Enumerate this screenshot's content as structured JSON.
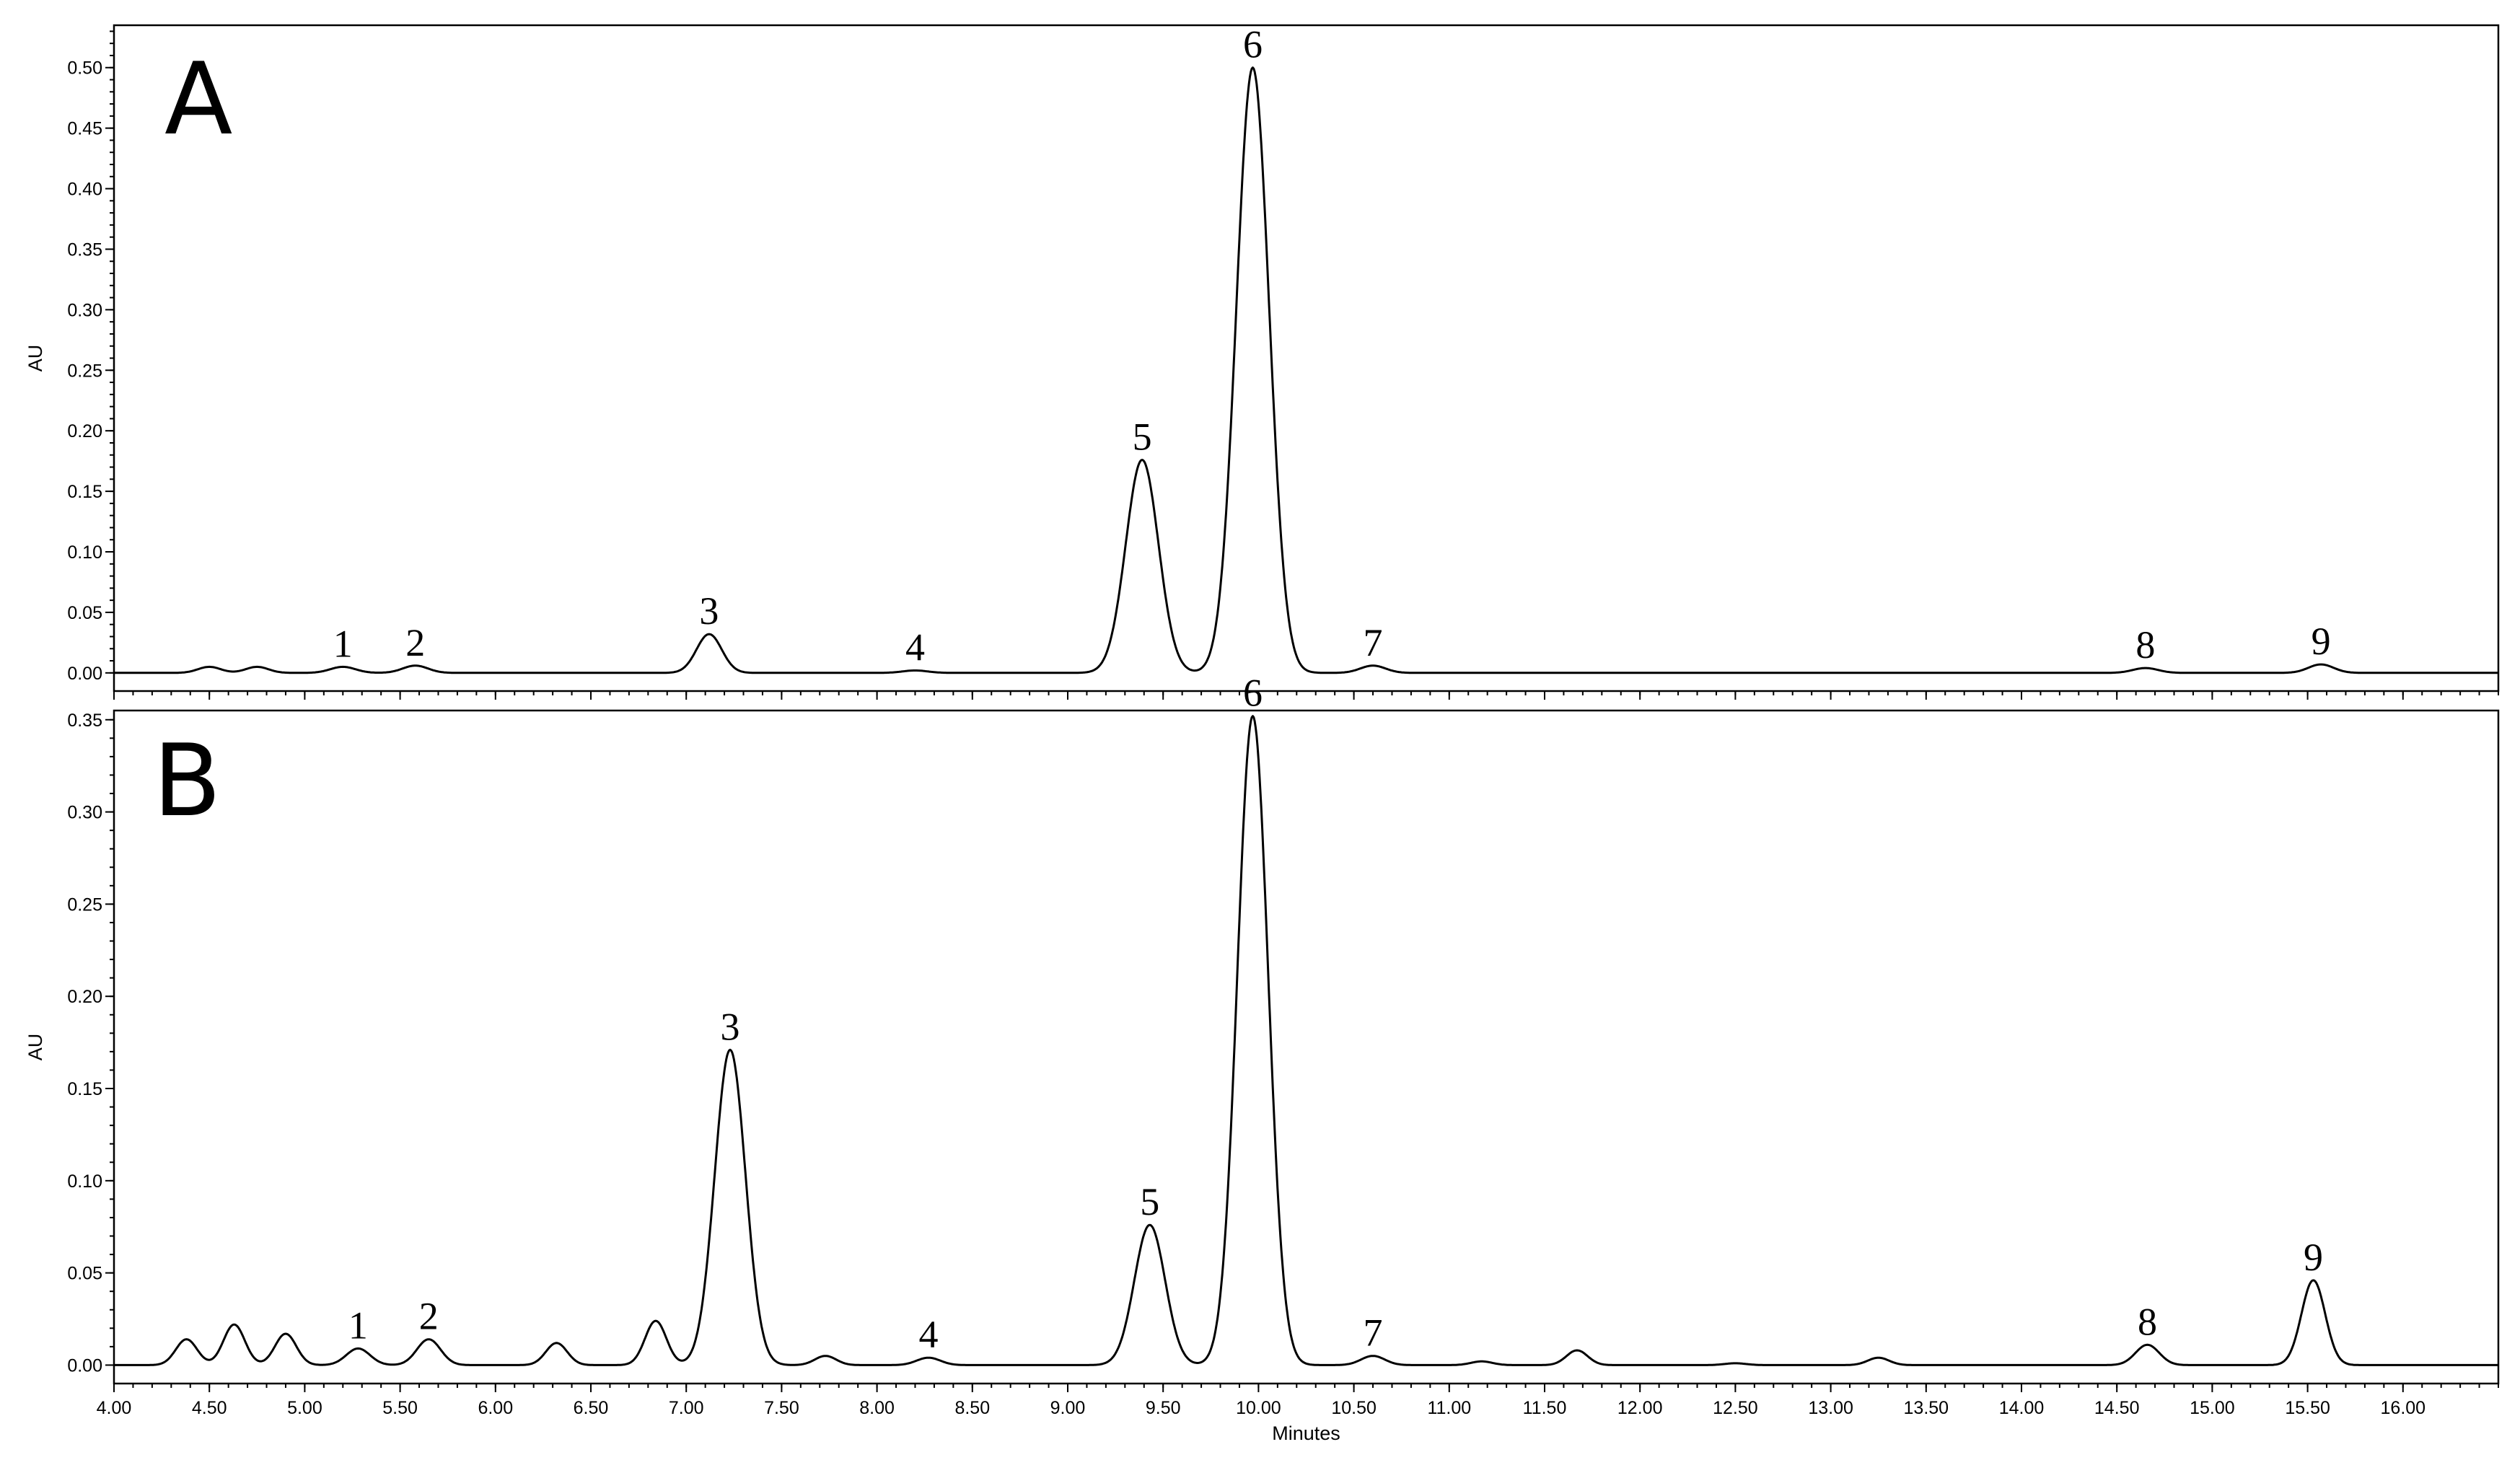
{
  "chart_data": [
    {
      "type": "line",
      "panel_label": "A",
      "ylabel": "AU",
      "xlabel": "",
      "xlim": [
        4.0,
        16.5
      ],
      "ylim": [
        -0.015,
        0.535
      ],
      "x_ticks": [
        "4.00",
        "4.50",
        "5.00",
        "5.50",
        "6.00",
        "6.50",
        "7.00",
        "7.50",
        "8.00",
        "8.50",
        "9.00",
        "9.50",
        "10.00",
        "10.50",
        "11.00",
        "11.50",
        "12.00",
        "12.50",
        "13.00",
        "13.50",
        "14.00",
        "14.50",
        "15.00",
        "15.50",
        "16.00"
      ],
      "y_ticks": [
        "0.00",
        "0.05",
        "0.10",
        "0.15",
        "0.20",
        "0.25",
        "0.30",
        "0.35",
        "0.40",
        "0.45",
        "0.50"
      ],
      "peaks": [
        {
          "label": "1",
          "time": 5.2,
          "height": 0.005
        },
        {
          "label": "2",
          "time": 5.58,
          "height": 0.006
        },
        {
          "label": "3",
          "time": 7.12,
          "height": 0.032
        },
        {
          "label": "4",
          "time": 8.2,
          "height": 0.002
        },
        {
          "label": "5",
          "time": 9.39,
          "height": 0.176
        },
        {
          "label": "6",
          "time": 9.97,
          "height": 0.5
        },
        {
          "label": "7",
          "time": 10.6,
          "height": 0.006
        },
        {
          "label": "8",
          "time": 14.65,
          "height": 0.004
        },
        {
          "label": "9",
          "time": 15.57,
          "height": 0.007
        }
      ],
      "minor_peaks": [
        {
          "time": 4.5,
          "height": 0.005
        },
        {
          "time": 4.75,
          "height": 0.005
        }
      ]
    },
    {
      "type": "line",
      "panel_label": "B",
      "ylabel": "AU",
      "xlabel": "Minutes",
      "xlim": [
        4.0,
        16.5
      ],
      "ylim": [
        -0.01,
        0.355
      ],
      "x_ticks": [
        "4.00",
        "4.50",
        "5.00",
        "5.50",
        "6.00",
        "6.50",
        "7.00",
        "7.50",
        "8.00",
        "8.50",
        "9.00",
        "9.50",
        "10.00",
        "10.50",
        "11.00",
        "11.50",
        "12.00",
        "12.50",
        "13.00",
        "13.50",
        "14.00",
        "14.50",
        "15.00",
        "15.50",
        "16.00"
      ],
      "y_ticks": [
        "0.00",
        "0.05",
        "0.10",
        "0.15",
        "0.20",
        "0.25",
        "0.30",
        "0.35"
      ],
      "peaks": [
        {
          "label": "1",
          "time": 5.28,
          "height": 0.009
        },
        {
          "label": "2",
          "time": 5.65,
          "height": 0.014
        },
        {
          "label": "3",
          "time": 7.23,
          "height": 0.171
        },
        {
          "label": "4",
          "time": 8.27,
          "height": 0.004
        },
        {
          "label": "5",
          "time": 9.43,
          "height": 0.076
        },
        {
          "label": "6",
          "time": 9.97,
          "height": 0.352
        },
        {
          "label": "7",
          "time": 10.6,
          "height": 0.005
        },
        {
          "label": "8",
          "time": 14.66,
          "height": 0.011
        },
        {
          "label": "9",
          "time": 15.53,
          "height": 0.046
        }
      ],
      "minor_peaks": [
        {
          "time": 4.38,
          "height": 0.014
        },
        {
          "time": 4.63,
          "height": 0.022
        },
        {
          "time": 4.9,
          "height": 0.017
        },
        {
          "time": 6.32,
          "height": 0.012
        },
        {
          "time": 6.84,
          "height": 0.024
        },
        {
          "time": 7.73,
          "height": 0.005
        },
        {
          "time": 11.17,
          "height": 0.002
        },
        {
          "time": 11.67,
          "height": 0.008
        },
        {
          "time": 12.5,
          "height": 0.001
        },
        {
          "time": 13.25,
          "height": 0.004
        }
      ]
    }
  ]
}
